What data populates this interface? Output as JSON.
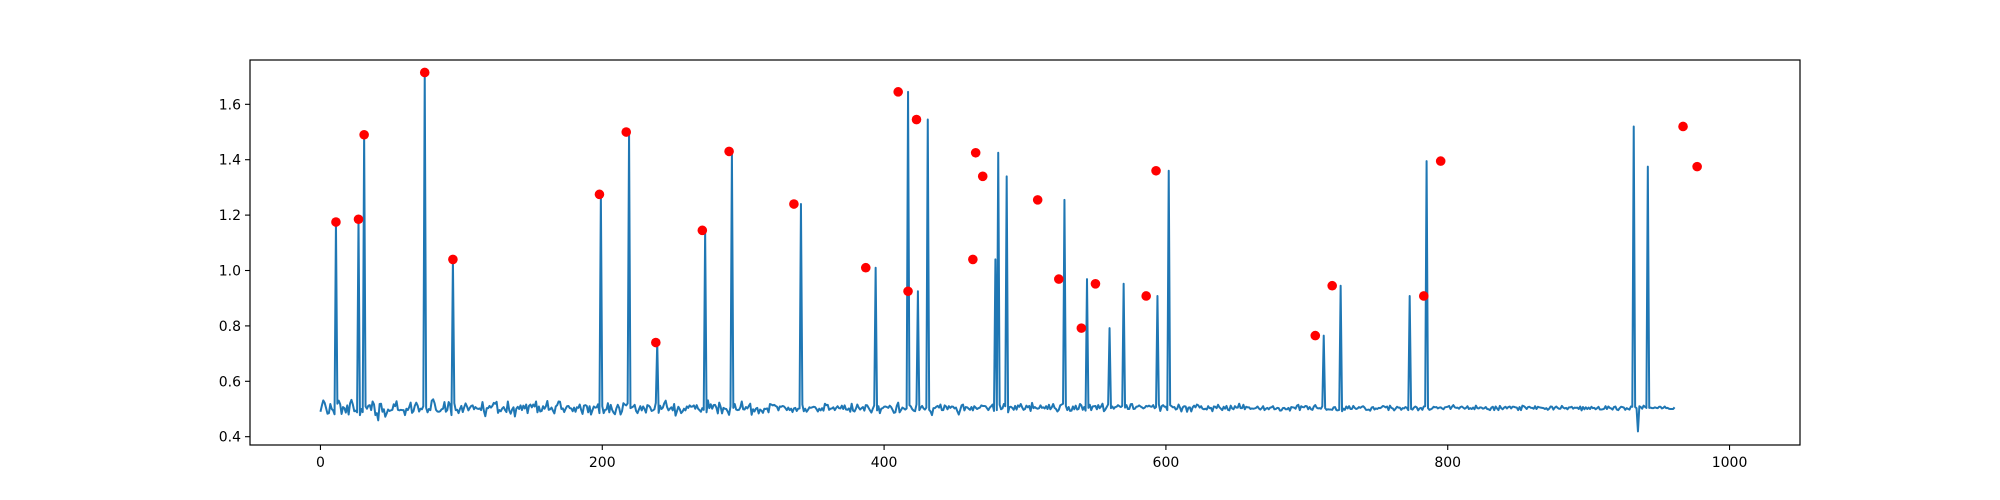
{
  "chart_data": {
    "type": "line",
    "title": "",
    "xlabel": "",
    "ylabel": "",
    "xlim": [
      -50,
      1050
    ],
    "ylim": [
      0.37,
      1.76
    ],
    "grid": false,
    "x_ticks": [
      0,
      200,
      400,
      600,
      800,
      1000
    ],
    "y_ticks": [
      0.4,
      0.6,
      0.8,
      1.0,
      1.2,
      1.4,
      1.6
    ],
    "x_tick_labels": [
      "0",
      "200",
      "400",
      "600",
      "800",
      "1000"
    ],
    "y_tick_labels": [
      "0.4",
      "0.6",
      "0.8",
      "1.0",
      "1.2",
      "1.4",
      "1.6"
    ],
    "series": [
      {
        "kind": "line",
        "color": "#1f77b4",
        "x_start": 0,
        "x_step": 1,
        "values": [
          0.49,
          0.512,
          0.531,
          0.522,
          0.503,
          0.483,
          0.485,
          0.518,
          0.5,
          0.495,
          0.481,
          1.175,
          0.519,
          0.53,
          0.517,
          0.482,
          0.507,
          0.503,
          0.487,
          0.513,
          0.48,
          0.52,
          0.533,
          0.516,
          0.492,
          0.494,
          0.488,
          1.185,
          0.478,
          0.5,
          0.489,
          1.49,
          0.509,
          0.501,
          0.512,
          0.514,
          0.496,
          0.527,
          0.517,
          0.478,
          0.485,
          0.459,
          0.518,
          0.519,
          0.49,
          0.499,
          0.472,
          0.484,
          0.498,
          0.493,
          0.495,
          0.497,
          0.517,
          0.51,
          0.528,
          0.497,
          0.495,
          0.497,
          0.496,
          0.496,
          0.478,
          0.501,
          0.496,
          0.507,
          0.523,
          0.486,
          0.492,
          0.512,
          0.523,
          0.512,
          0.491,
          0.501,
          0.499,
          0.51,
          1.715,
          0.504,
          0.488,
          0.5,
          0.496,
          0.53,
          0.535,
          0.521,
          0.497,
          0.491,
          0.49,
          0.492,
          0.499,
          0.501,
          0.525,
          0.49,
          0.496,
          0.525,
          0.516,
          0.478,
          1.04,
          0.521,
          0.496,
          0.497,
          0.485,
          0.5,
          0.511,
          0.489,
          0.506,
          0.52,
          0.509,
          0.495,
          0.504,
          0.511,
          0.513,
          0.499,
          0.507,
          0.502,
          0.5,
          0.502,
          0.496,
          0.525,
          0.493,
          0.474,
          0.503,
          0.503,
          0.511,
          0.505,
          0.511,
          0.522,
          0.519,
          0.526,
          0.486,
          0.496,
          0.492,
          0.502,
          0.507,
          0.496,
          0.489,
          0.527,
          0.495,
          0.483,
          0.498,
          0.506,
          0.473,
          0.501,
          0.508,
          0.5,
          0.513,
          0.496,
          0.512,
          0.502,
          0.516,
          0.485,
          0.511,
          0.516,
          0.506,
          0.516,
          0.509,
          0.527,
          0.488,
          0.509,
          0.491,
          0.493,
          0.51,
          0.501,
          0.51,
          0.529,
          0.497,
          0.499,
          0.505,
          0.494,
          0.484,
          0.509,
          0.514,
          0.527,
          0.526,
          0.5,
          0.502,
          0.489,
          0.501,
          0.51,
          0.511,
          0.503,
          0.502,
          0.492,
          0.505,
          0.49,
          0.506,
          0.504,
          0.516,
          0.497,
          0.482,
          0.512,
          0.514,
          0.511,
          0.488,
          0.51,
          0.48,
          0.495,
          0.509,
          0.505,
          0.506,
          0.517,
          0.485,
          1.275,
          0.51,
          0.485,
          0.497,
          0.498,
          0.521,
          0.488,
          0.515,
          0.497,
          0.487,
          0.481,
          0.502,
          0.515,
          0.504,
          0.48,
          0.492,
          0.521,
          0.516,
          0.513,
          0.52,
          1.5,
          0.503,
          0.506,
          0.509,
          0.515,
          0.493,
          0.485,
          0.498,
          0.51,
          0.495,
          0.509,
          0.5,
          0.487,
          0.514,
          0.512,
          0.506,
          0.493,
          0.495,
          0.499,
          0.522,
          0.74,
          0.486,
          0.512,
          0.5,
          0.505,
          0.521,
          0.53,
          0.507,
          0.495,
          0.501,
          0.506,
          0.495,
          0.518,
          0.476,
          0.492,
          0.508,
          0.499,
          0.485,
          0.491,
          0.501,
          0.495,
          0.509,
          0.504,
          0.513,
          0.508,
          0.509,
          0.513,
          0.501,
          0.514,
          0.501,
          0.496,
          0.49,
          0.503,
          0.497,
          1.145,
          0.488,
          0.531,
          0.503,
          0.517,
          0.501,
          0.514,
          0.515,
          0.505,
          0.484,
          0.523,
          0.508,
          0.484,
          0.504,
          0.501,
          0.5,
          0.491,
          0.479,
          0.509,
          1.43,
          0.504,
          0.518,
          0.498,
          0.496,
          0.497,
          0.506,
          0.527,
          0.499,
          0.498,
          0.507,
          0.502,
          0.511,
          0.519,
          0.479,
          0.499,
          0.491,
          0.501,
          0.504,
          0.484,
          0.498,
          0.494,
          0.486,
          0.501,
          0.5,
          0.502,
          0.488,
          0.518,
          0.516,
          0.513,
          0.515,
          0.511,
          0.508,
          0.495,
          0.509,
          0.508,
          0.511,
          0.509,
          0.503,
          0.496,
          0.505,
          0.496,
          0.501,
          0.489,
          0.502,
          0.504,
          0.493,
          0.501,
          0.502,
          1.24,
          0.516,
          0.492,
          0.501,
          0.49,
          0.497,
          0.506,
          0.504,
          0.506,
          0.508,
          0.507,
          0.5,
          0.491,
          0.501,
          0.495,
          0.503,
          0.494,
          0.519,
          0.514,
          0.515,
          0.497,
          0.501,
          0.502,
          0.506,
          0.496,
          0.504,
          0.51,
          0.503,
          0.502,
          0.512,
          0.5,
          0.513,
          0.498,
          0.497,
          0.502,
          0.49,
          0.519,
          0.494,
          0.491,
          0.501,
          0.516,
          0.505,
          0.498,
          0.503,
          0.507,
          0.494,
          0.514,
          0.513,
          0.504,
          0.495,
          0.487,
          0.501,
          0.513,
          1.01,
          0.495,
          0.51,
          0.485,
          0.501,
          0.503,
          0.508,
          0.509,
          0.507,
          0.504,
          0.512,
          0.507,
          0.497,
          0.486,
          0.488,
          0.511,
          0.523,
          0.488,
          0.496,
          0.505,
          0.502,
          0.498,
          0.502,
          1.645,
          0.514,
          0.509,
          0.499,
          0.494,
          0.492,
          0.517,
          0.925,
          0.496,
          0.505,
          0.511,
          0.502,
          0.498,
          0.505,
          1.545,
          0.497,
          0.491,
          0.478,
          0.503,
          0.503,
          0.508,
          0.511,
          0.505,
          0.516,
          0.496,
          0.496,
          0.513,
          0.509,
          0.499,
          0.51,
          0.504,
          0.509,
          0.508,
          0.502,
          0.505,
          0.492,
          0.48,
          0.496,
          0.513,
          0.516,
          0.495,
          0.507,
          0.506,
          0.501,
          0.497,
          0.507,
          0.495,
          0.51,
          0.505,
          0.5,
          0.503,
          0.505,
          0.513,
          0.511,
          0.511,
          0.51,
          0.503,
          0.496,
          0.505,
          0.51,
          0.516,
          0.493,
          1.04,
          0.496,
          1.425,
          0.515,
          0.499,
          0.502,
          0.518,
          0.51,
          1.34,
          0.488,
          0.507,
          0.508,
          0.504,
          0.497,
          0.511,
          0.498,
          0.513,
          0.508,
          0.518,
          0.506,
          0.497,
          0.5,
          0.512,
          0.506,
          0.511,
          0.493,
          0.522,
          0.503,
          0.507,
          0.503,
          0.501,
          0.503,
          0.513,
          0.504,
          0.506,
          0.502,
          0.51,
          0.5,
          0.515,
          0.499,
          0.506,
          0.518,
          0.504,
          0.5,
          0.491,
          0.497,
          0.513,
          0.516,
          0.519,
          1.255,
          0.511,
          0.496,
          0.507,
          0.493,
          0.494,
          0.509,
          0.499,
          0.512,
          0.498,
          0.5,
          0.518,
          0.513,
          0.497,
          0.507,
          0.494,
          0.969,
          0.504,
          0.515,
          0.496,
          0.509,
          0.51,
          0.511,
          0.499,
          0.514,
          0.503,
          0.509,
          0.519,
          0.492,
          0.498,
          0.507,
          0.517,
          0.792,
          0.503,
          0.509,
          0.501,
          0.507,
          0.508,
          0.514,
          0.51,
          0.507,
          0.511,
          0.952,
          0.505,
          0.514,
          0.5,
          0.5,
          0.517,
          0.518,
          0.5,
          0.501,
          0.508,
          0.509,
          0.513,
          0.509,
          0.506,
          0.502,
          0.505,
          0.511,
          0.509,
          0.512,
          0.509,
          0.508,
          0.514,
          0.503,
          0.507,
          0.908,
          0.517,
          0.493,
          0.51,
          0.514,
          0.508,
          0.508,
          0.496,
          1.36,
          0.514,
          0.51,
          0.506,
          0.507,
          0.498,
          0.501,
          0.516,
          0.505,
          0.491,
          0.506,
          0.51,
          0.509,
          0.49,
          0.505,
          0.506,
          0.491,
          0.506,
          0.512,
          0.506,
          0.516,
          0.513,
          0.505,
          0.51,
          0.501,
          0.499,
          0.501,
          0.498,
          0.51,
          0.503,
          0.504,
          0.492,
          0.509,
          0.508,
          0.503,
          0.515,
          0.506,
          0.501,
          0.496,
          0.508,
          0.501,
          0.511,
          0.497,
          0.495,
          0.512,
          0.502,
          0.499,
          0.51,
          0.505,
          0.505,
          0.519,
          0.503,
          0.503,
          0.515,
          0.499,
          0.508,
          0.506,
          0.506,
          0.5,
          0.502,
          0.501,
          0.502,
          0.504,
          0.509,
          0.502,
          0.498,
          0.503,
          0.51,
          0.496,
          0.501,
          0.504,
          0.499,
          0.505,
          0.506,
          0.51,
          0.499,
          0.5,
          0.504,
          0.503,
          0.494,
          0.495,
          0.503,
          0.504,
          0.499,
          0.499,
          0.504,
          0.494,
          0.507,
          0.506,
          0.505,
          0.501,
          0.512,
          0.515,
          0.496,
          0.51,
          0.507,
          0.506,
          0.511,
          0.51,
          0.499,
          0.507,
          0.499,
          0.497,
          0.509,
          0.514,
          0.505,
          0.502,
          0.503,
          0.501,
          0.51,
          0.765,
          0.503,
          0.497,
          0.499,
          0.498,
          0.498,
          0.497,
          0.506,
          0.507,
          0.496,
          0.495,
          0.497,
          0.945,
          0.492,
          0.501,
          0.497,
          0.509,
          0.502,
          0.51,
          0.5,
          0.5,
          0.511,
          0.504,
          0.5,
          0.502,
          0.507,
          0.504,
          0.508,
          0.51,
          0.505,
          0.497,
          0.497,
          0.498,
          0.494,
          0.505,
          0.507,
          0.498,
          0.502,
          0.5,
          0.504,
          0.503,
          0.506,
          0.511,
          0.509,
          0.506,
          0.509,
          0.496,
          0.512,
          0.504,
          0.502,
          0.495,
          0.501,
          0.508,
          0.505,
          0.505,
          0.497,
          0.503,
          0.502,
          0.507,
          0.504,
          0.496,
          0.908,
          0.5,
          0.498,
          0.505,
          0.509,
          0.506,
          0.495,
          0.502,
          0.504,
          0.497,
          0.509,
          0.51,
          1.395,
          0.503,
          0.497,
          0.499,
          0.502,
          0.508,
          0.506,
          0.507,
          0.502,
          0.505,
          0.506,
          0.502,
          0.499,
          0.506,
          0.507,
          0.508,
          0.511,
          0.5,
          0.508,
          0.514,
          0.506,
          0.504,
          0.505,
          0.501,
          0.507,
          0.509,
          0.505,
          0.501,
          0.504,
          0.51,
          0.5,
          0.503,
          0.5,
          0.505,
          0.499,
          0.512,
          0.503,
          0.502,
          0.506,
          0.505,
          0.501,
          0.503,
          0.507,
          0.5,
          0.499,
          0.496,
          0.505,
          0.508,
          0.496,
          0.509,
          0.502,
          0.496,
          0.511,
          0.503,
          0.499,
          0.505,
          0.508,
          0.502,
          0.507,
          0.509,
          0.502,
          0.508,
          0.508,
          0.506,
          0.505,
          0.496,
          0.507,
          0.496,
          0.512,
          0.51,
          0.506,
          0.5,
          0.507,
          0.508,
          0.504,
          0.504,
          0.501,
          0.51,
          0.5,
          0.508,
          0.506,
          0.505,
          0.504,
          0.503,
          0.5,
          0.503,
          0.497,
          0.501,
          0.509,
          0.508,
          0.498,
          0.505,
          0.509,
          0.504,
          0.501,
          0.501,
          0.511,
          0.505,
          0.502,
          0.504,
          0.499,
          0.506,
          0.506,
          0.508,
          0.501,
          0.505,
          0.504,
          0.505,
          0.5,
          0.509,
          0.495,
          0.507,
          0.499,
          0.506,
          0.5,
          0.505,
          0.5,
          0.508,
          0.503,
          0.504,
          0.499,
          0.503,
          0.508,
          0.498,
          0.498,
          0.499,
          0.501,
          0.51,
          0.5,
          0.509,
          0.504,
          0.502,
          0.498,
          0.507,
          0.509,
          0.498,
          0.496,
          0.503,
          0.508,
          0.507,
          0.505,
          0.497,
          0.503,
          0.5,
          0.498,
          0.509,
          0.508,
          1.52,
          0.507,
          0.503,
          0.419,
          0.51,
          0.507,
          0.501,
          0.512,
          0.508,
          0.504,
          1.375,
          0.504,
          0.505,
          0.503,
          0.503,
          0.506,
          0.504,
          0.503,
          0.508,
          0.508,
          0.502,
          0.504,
          0.509,
          0.503,
          0.504,
          0.501,
          0.5,
          0.5,
          0.5,
          0.506
        ]
      },
      {
        "kind": "peaks",
        "color": "#ff0000",
        "x": [
          11,
          27,
          31,
          74,
          94,
          198,
          217,
          238,
          271,
          290,
          336,
          387,
          410,
          417,
          423,
          463,
          465,
          470,
          509,
          524,
          540,
          550,
          586,
          593,
          706,
          718,
          783,
          795,
          967,
          977
        ],
        "y": [
          1.175,
          1.185,
          1.49,
          1.715,
          1.04,
          1.275,
          1.5,
          0.74,
          1.145,
          1.43,
          1.24,
          1.01,
          1.645,
          0.925,
          1.545,
          1.04,
          1.425,
          1.34,
          1.255,
          0.969,
          0.792,
          0.952,
          0.908,
          1.36,
          0.765,
          0.945,
          0.908,
          1.395,
          1.52,
          1.375
        ]
      }
    ]
  }
}
